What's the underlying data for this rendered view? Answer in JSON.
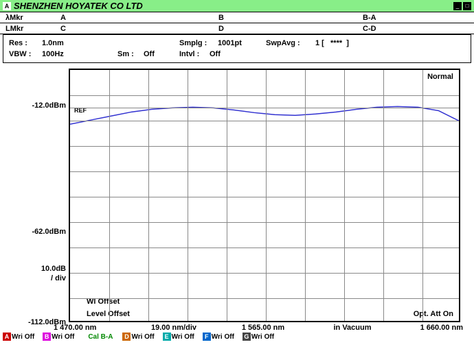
{
  "window": {
    "logo": "A",
    "title": "SHENZHEN HOYATEK CO LTD"
  },
  "markers": {
    "lambda_label": "λMkr",
    "l_label": "LMkr",
    "a": "A",
    "b": "B",
    "ba": "B-A",
    "c": "C",
    "d": "D",
    "cd": "C-D"
  },
  "settings": {
    "res_label": "Res :",
    "res_val": "1.0nm",
    "smplg_label": "Smplg :",
    "smplg_val": "1001pt",
    "swpavg_label": "SwpAvg :",
    "swpavg_val": "1 [   ****  ]",
    "vbw_label": "VBW :",
    "vbw_val": "100Hz",
    "sm_label": "Sm :",
    "sm_val": "Off",
    "intvl_label": "Intvl :",
    "intvl_val": "Off"
  },
  "chart": {
    "mode_label": "Normal",
    "ref_label": "REF",
    "wl_offset_label": "Wl Offset",
    "level_offset_label": "Level Offset",
    "opt_att_label": "Opt. Att On",
    "y_top": "-12.0dBm",
    "y_mid": "-62.0dBm",
    "y_div1": "10.0dB",
    "y_div2": "/ div",
    "y_bottom": "-112.0dBm",
    "x_start": "1 470.00 nm",
    "x_div": "19.00 nm/div",
    "x_center": "1 565.00 nm",
    "x_vacuum": "in Vacuum",
    "x_end": "1 660.00 nm",
    "trace_color": "#3030d0",
    "grid_color": "#888888",
    "points": [
      [
        0,
        80
      ],
      [
        30,
        74
      ],
      [
        60,
        68
      ],
      [
        90,
        62
      ],
      [
        120,
        58
      ],
      [
        150,
        56
      ],
      [
        180,
        55
      ],
      [
        210,
        56
      ],
      [
        240,
        59
      ],
      [
        270,
        63
      ],
      [
        300,
        66
      ],
      [
        330,
        67
      ],
      [
        360,
        65
      ],
      [
        390,
        62
      ],
      [
        420,
        58
      ],
      [
        450,
        55
      ],
      [
        480,
        54
      ],
      [
        510,
        55
      ],
      [
        540,
        60
      ],
      [
        570,
        75
      ]
    ]
  },
  "status": {
    "channels": [
      {
        "letter": "A",
        "color": "#cc0000",
        "txt": "Wri Off"
      },
      {
        "letter": "B",
        "color": "#dd00dd",
        "txt": "Wri Off"
      }
    ],
    "cal": "Cal B-A",
    "channels2": [
      {
        "letter": "D",
        "color": "#cc6600",
        "txt": "Wri Off"
      },
      {
        "letter": "E",
        "color": "#00aaaa",
        "txt": "Wri Off"
      },
      {
        "letter": "F",
        "color": "#0066cc",
        "txt": "Wri Off"
      },
      {
        "letter": "G",
        "color": "#444444",
        "txt": "Wri Off"
      }
    ]
  }
}
